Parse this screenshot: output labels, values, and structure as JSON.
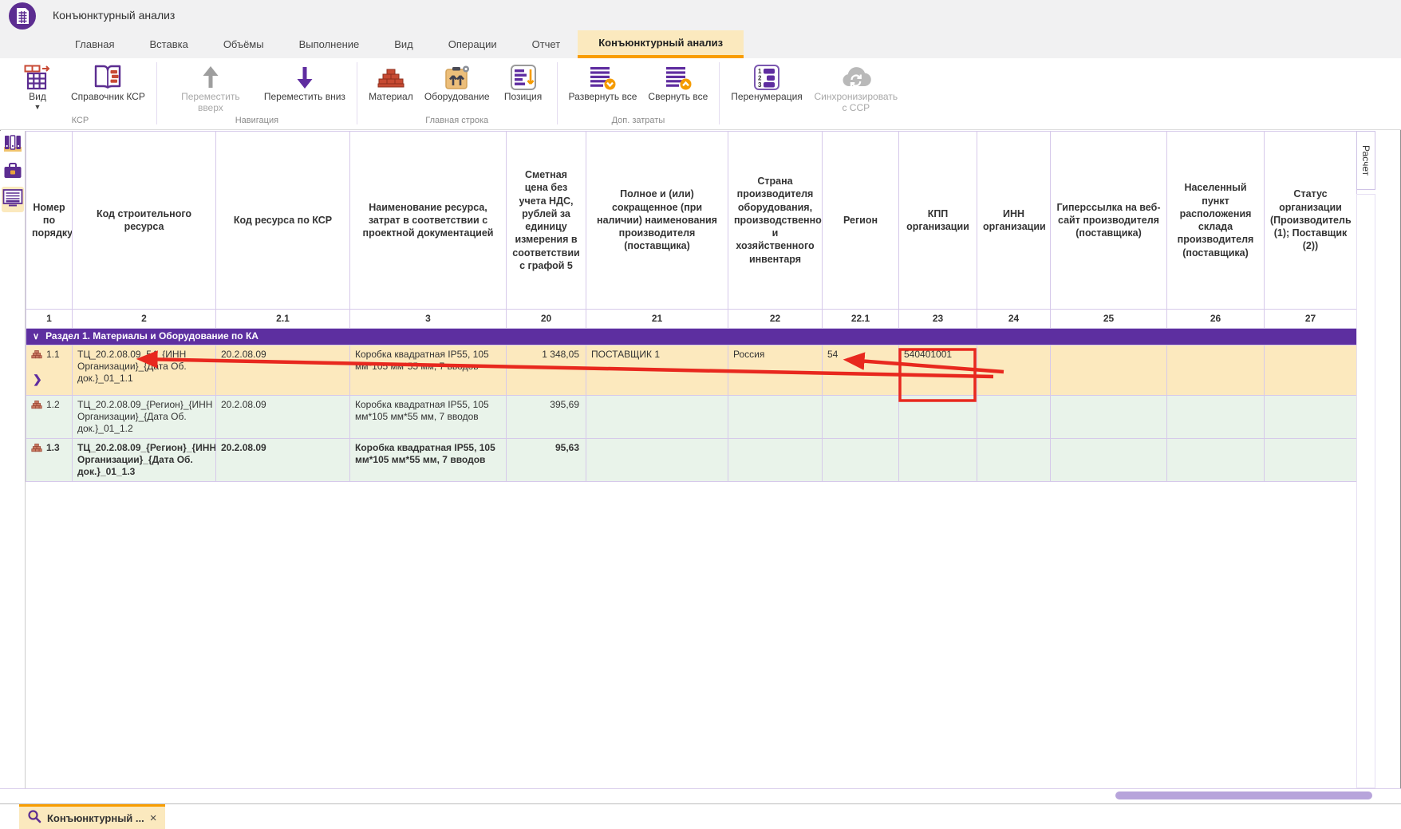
{
  "window": {
    "title": "Конъюнктурный анализ"
  },
  "menu": {
    "tabs": [
      {
        "label": "Главная",
        "active": false
      },
      {
        "label": "Вставка",
        "active": false
      },
      {
        "label": "Объёмы",
        "active": false
      },
      {
        "label": "Выполнение",
        "active": false
      },
      {
        "label": "Вид",
        "active": false
      },
      {
        "label": "Операции",
        "active": false
      },
      {
        "label": "Отчет",
        "active": false
      },
      {
        "label": "Конъюнктурный анализ",
        "active": true
      }
    ]
  },
  "ribbon": {
    "groups": [
      {
        "label": "КСР",
        "buttons": [
          {
            "label": "Вид",
            "icon": "view-table-icon",
            "caret": true,
            "disabled": false
          },
          {
            "label": "Справочник КСР",
            "icon": "book-icon",
            "disabled": false
          }
        ]
      },
      {
        "label": "Навигация",
        "buttons": [
          {
            "label": "Переместить вверх",
            "icon": "move-up-icon",
            "disabled": true
          },
          {
            "label": "Переместить вниз",
            "icon": "move-down-icon",
            "disabled": false
          }
        ]
      },
      {
        "label": "Главная строка",
        "buttons": [
          {
            "label": "Материал",
            "icon": "bricks-icon",
            "disabled": false
          },
          {
            "label": "Оборудование",
            "icon": "equipment-icon",
            "disabled": false
          },
          {
            "label": "Позиция",
            "icon": "position-icon",
            "disabled": false
          }
        ]
      },
      {
        "label": "Доп. затраты",
        "buttons": [
          {
            "label": "Развернуть все",
            "icon": "expand-all-icon",
            "disabled": false
          },
          {
            "label": "Свернуть все",
            "icon": "collapse-all-icon",
            "disabled": false
          }
        ]
      },
      {
        "label": "",
        "buttons": [
          {
            "label": "Перенумерация",
            "icon": "renumber-icon",
            "disabled": false
          },
          {
            "label": "Синхронизировать с ССР",
            "icon": "sync-icon",
            "disabled": true
          }
        ]
      }
    ]
  },
  "sidebar": {
    "items": [
      {
        "icon": "binders-icon",
        "active": false
      },
      {
        "icon": "briefcase-icon",
        "active": false
      },
      {
        "icon": "sheet-icon",
        "active": true
      }
    ]
  },
  "right_panel": {
    "tab": "Расчет"
  },
  "table": {
    "columns": [
      {
        "num": "1",
        "header": "Номер по порядку"
      },
      {
        "num": "2",
        "header": "Код строительного ресурса"
      },
      {
        "num": "2.1",
        "header": "Код ресурса по КСР"
      },
      {
        "num": "3",
        "header": "Наименование ресурса, затрат в соответствии с проектной документацией"
      },
      {
        "num": "20",
        "header": "Сметная цена без учета НДС, рублей за единицу измерения в соответствии с графой 5"
      },
      {
        "num": "21",
        "header": "Полное и (или) сокращенное (при наличии) наименования производителя (поставщика)"
      },
      {
        "num": "22",
        "header": "Страна производителя оборудования, производственного и хозяйственного инвентаря"
      },
      {
        "num": "22.1",
        "header": "Регион"
      },
      {
        "num": "23",
        "header": "КПП организации"
      },
      {
        "num": "24",
        "header": "ИНН организации"
      },
      {
        "num": "25",
        "header": "Гиперссылка на веб-сайт производителя (поставщика)"
      },
      {
        "num": "26",
        "header": "Населенный пункт расположения склада производителя (поставщика)"
      },
      {
        "num": "27",
        "header": "Статус организации (Производитель (1); Поставщик (2))"
      }
    ],
    "section": {
      "label": "Раздел 1. Материалы и Оборудование по КА"
    },
    "rows": [
      {
        "num": "1.1",
        "code": "ТЦ_20.2.08.09_54_{ИНН Организации}_{Дата Об. док.}_01_1.1",
        "ksr_code": "20.2.08.09",
        "name": "Коробка квадратная IP55, 105 мм*105 мм*55 мм, 7 вводов",
        "price": "1 348,05",
        "supplier": "ПОСТАВЩИК 1",
        "country": "Россия",
        "region": "54",
        "kpp": "540401001",
        "inn": "",
        "website": "",
        "warehouse": "",
        "status": "",
        "selected": true,
        "expandable": true,
        "bold": false
      },
      {
        "num": "1.2",
        "code": "ТЦ_20.2.08.09_{Регион}_{ИНН Организации}_{Дата Об. док.}_01_1.2",
        "ksr_code": "20.2.08.09",
        "name": "Коробка квадратная IP55, 105 мм*105 мм*55 мм, 7 вводов",
        "price": "395,69",
        "supplier": "",
        "country": "",
        "region": "",
        "kpp": "",
        "inn": "",
        "website": "",
        "warehouse": "",
        "status": "",
        "selected": false,
        "expandable": false,
        "bold": false
      },
      {
        "num": "1.3",
        "code": "ТЦ_20.2.08.09_{Регион}_{ИНН Организации}_{Дата Об. док.}_01_1.3",
        "ksr_code": "20.2.08.09",
        "name": "Коробка квадратная IP55, 105 мм*105 мм*55 мм, 7 вводов",
        "price": "95,63",
        "supplier": "",
        "country": "",
        "region": "",
        "kpp": "",
        "inn": "",
        "website": "",
        "warehouse": "",
        "status": "",
        "selected": false,
        "expandable": false,
        "bold": true
      }
    ]
  },
  "bottom_bar": {
    "tab_label": "Конъюнктурный ...",
    "close_label": "×"
  },
  "colors": {
    "accent_purple": "#5c2d91",
    "section_bg": "#5d2fa0",
    "selected_row_bg": "#fce9be",
    "row_bg": "#e9f3ea",
    "active_tab_bg": "#fbe9be",
    "tab_underline": "#f99d00",
    "annotation_red": "#e8281e",
    "grid_line": "#d6c9ea"
  }
}
